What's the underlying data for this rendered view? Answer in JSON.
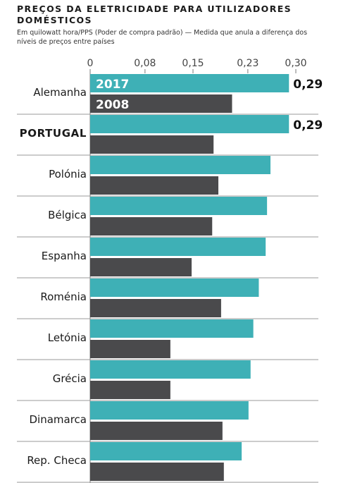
{
  "header": {
    "title": "PREÇOS DA ELETRICIDADE PARA UTILIZADORES DOMÉSTICOS",
    "subtitle": "Em quilowatt hora/PPS (Poder de compra padrão) — Medida que anula a diferença dos níveis de preços entre países"
  },
  "colors": {
    "series_2017": "#3eb0b6",
    "series_2008": "#4a4a4c",
    "divider": "#9a9a9a",
    "axis": "#7a7a7a"
  },
  "chart_data": {
    "type": "bar",
    "orientation": "horizontal",
    "title": "PREÇOS DA ELETRICIDADE PARA UTILIZADORES DOMÉSTICOS",
    "subtitle": "Em quilowatt hora/PPS (Poder de compra padrão) — Medida que anula a diferença dos níveis de preços entre países",
    "xlim": [
      0,
      0.3
    ],
    "ticks": [
      0,
      0.08,
      0.15,
      0.23,
      0.3
    ],
    "tick_labels": [
      "0",
      "0,08",
      "0,15",
      "0,23",
      "0,30"
    ],
    "categories": [
      "Alemanha",
      "PORTUGAL",
      "Polónia",
      "Bélgica",
      "Espanha",
      "Roménia",
      "Letónia",
      "Grécia",
      "Dinamarca",
      "Rep. Checa"
    ],
    "highlight_category": "PORTUGAL",
    "series": [
      {
        "name": "2017",
        "values": [
          0.29,
          0.29,
          0.263,
          0.258,
          0.256,
          0.246,
          0.238,
          0.234,
          0.231,
          0.221
        ]
      },
      {
        "name": "2008",
        "values": [
          0.207,
          0.18,
          0.187,
          0.178,
          0.148,
          0.191,
          0.117,
          0.117,
          0.193,
          0.195
        ]
      }
    ],
    "data_labels": [
      {
        "category": "Alemanha",
        "series": "2017",
        "text": "0,29"
      },
      {
        "category": "PORTUGAL",
        "series": "2017",
        "text": "0,29"
      }
    ],
    "legend_in_bars": {
      "category": "Alemanha",
      "labels": [
        "2017",
        "2008"
      ]
    },
    "grid": false,
    "partial_next_bar": true
  }
}
